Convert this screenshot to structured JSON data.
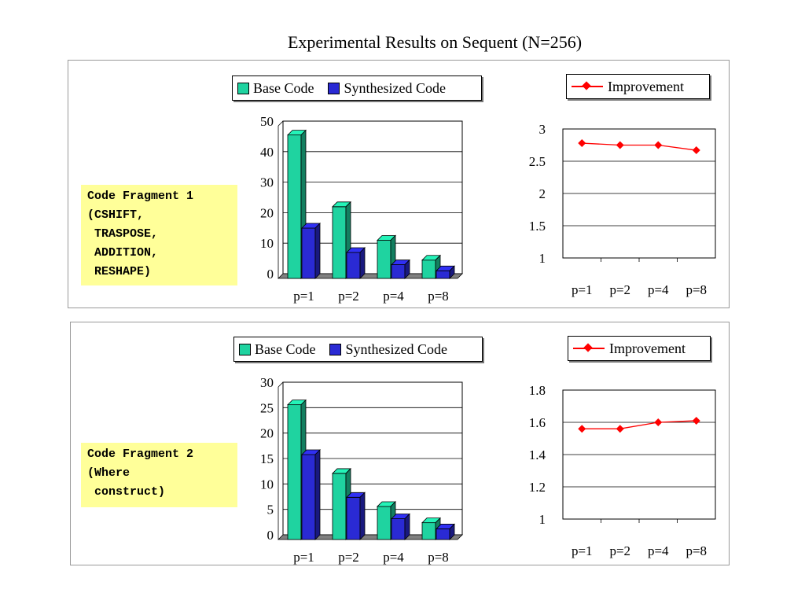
{
  "page": {
    "title": "Experimental Results on Sequent (N=256)"
  },
  "fragments": [
    {
      "label": "Code Fragment 1\n(CSHIFT,\n TRASPOSE,\n ADDITION,\n RESHAPE)"
    },
    {
      "label": "Code Fragment 2\n(Where\n construct)"
    }
  ],
  "legends": {
    "bar": {
      "base": "Base Code",
      "synth": "Synthesized Code"
    },
    "line": {
      "improvement": "Improvement"
    }
  },
  "colors": {
    "base": "#1fd3a0",
    "synth": "#2a2ad4",
    "improvement": "#ff0000",
    "fragment_bg": "#ffff99"
  },
  "chart_data": [
    {
      "type": "bar",
      "categories": [
        "p=1",
        "p=2",
        "p=4",
        "p=8"
      ],
      "series": [
        {
          "name": "Base Code",
          "values": [
            47,
            23.5,
            12.5,
            6
          ]
        },
        {
          "name": "Synthesized Code",
          "values": [
            16.5,
            8.5,
            4.5,
            2.5
          ]
        }
      ],
      "ylim": [
        0,
        50
      ],
      "yticks": [
        0,
        10,
        20,
        30,
        40,
        50
      ],
      "grid": true,
      "style": "3d",
      "legend": "top"
    },
    {
      "type": "line",
      "categories": [
        "p=1",
        "p=2",
        "p=4",
        "p=8"
      ],
      "series": [
        {
          "name": "Improvement",
          "values": [
            2.78,
            2.75,
            2.75,
            2.67
          ]
        }
      ],
      "ylim": [
        1,
        3
      ],
      "yticks": [
        1,
        1.5,
        2,
        2.5,
        3
      ],
      "grid": true,
      "legend": "top"
    },
    {
      "type": "bar",
      "categories": [
        "p=1",
        "p=2",
        "p=4",
        "p=8"
      ],
      "series": [
        {
          "name": "Base Code",
          "values": [
            26.5,
            13,
            6.5,
            3.3
          ]
        },
        {
          "name": "Synthesized Code",
          "values": [
            16.7,
            8.3,
            4.1,
            2.1
          ]
        }
      ],
      "ylim": [
        0,
        30
      ],
      "yticks": [
        0,
        5,
        10,
        15,
        20,
        25,
        30
      ],
      "grid": true,
      "style": "3d",
      "legend": "top"
    },
    {
      "type": "line",
      "categories": [
        "p=1",
        "p=2",
        "p=4",
        "p=8"
      ],
      "series": [
        {
          "name": "Improvement",
          "values": [
            1.56,
            1.56,
            1.6,
            1.61
          ]
        }
      ],
      "ylim": [
        1,
        1.8
      ],
      "yticks": [
        1,
        1.2,
        1.4,
        1.6,
        1.8
      ],
      "grid": true,
      "legend": "top"
    }
  ]
}
